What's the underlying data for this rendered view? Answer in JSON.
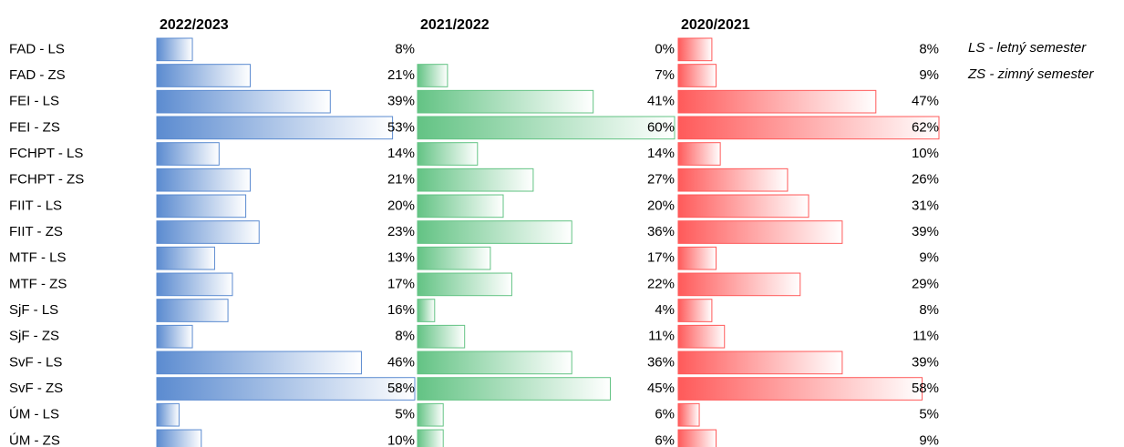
{
  "chart_data": {
    "type": "bar",
    "categories": [
      "FAD - LS",
      "FAD - ZS",
      "FEI - LS",
      "FEI - ZS",
      "FCHPT - LS",
      "FCHPT - ZS",
      "FIIT - LS",
      "FIIT - ZS",
      "MTF - LS",
      "MTF - ZS",
      "SjF - LS",
      "SjF - ZS",
      "SvF - LS",
      "SvF - ZS",
      "ÚM - LS",
      "ÚM - ZS"
    ],
    "series": [
      {
        "name": "2022/2023",
        "color": "#5b8bd0",
        "values": [
          8,
          21,
          39,
          53,
          14,
          21,
          20,
          23,
          13,
          17,
          16,
          8,
          46,
          58,
          5,
          10
        ],
        "value_labels": [
          "8%",
          "21%",
          "39%",
          "53%",
          "14%",
          "21%",
          "20%",
          "23%",
          "13%",
          "17%",
          "16%",
          "8%",
          "46%",
          "58%",
          "5%",
          "10%"
        ]
      },
      {
        "name": "2021/2022",
        "color": "#63c384",
        "values": [
          0,
          7,
          41,
          60,
          14,
          27,
          20,
          36,
          17,
          22,
          4,
          11,
          36,
          45,
          6,
          6
        ],
        "value_labels": [
          "0%",
          "7%",
          "41%",
          "60%",
          "14%",
          "27%",
          "20%",
          "36%",
          "17%",
          "22%",
          "4%",
          "11%",
          "36%",
          "45%",
          "6%",
          "6%"
        ]
      },
      {
        "name": "2020/2021",
        "color": "#ff5a5a",
        "values": [
          8,
          9,
          47,
          62,
          10,
          26,
          31,
          39,
          9,
          29,
          8,
          11,
          39,
          58,
          5,
          9
        ],
        "value_labels": [
          "8%",
          "9%",
          "47%",
          "62%",
          "10%",
          "26%",
          "31%",
          "39%",
          "9%",
          "29%",
          "8%",
          "11%",
          "39%",
          "58%",
          "5%",
          "9%"
        ]
      }
    ],
    "annotations": [
      "LS - letný semester",
      "ZS - zimný semester"
    ]
  }
}
